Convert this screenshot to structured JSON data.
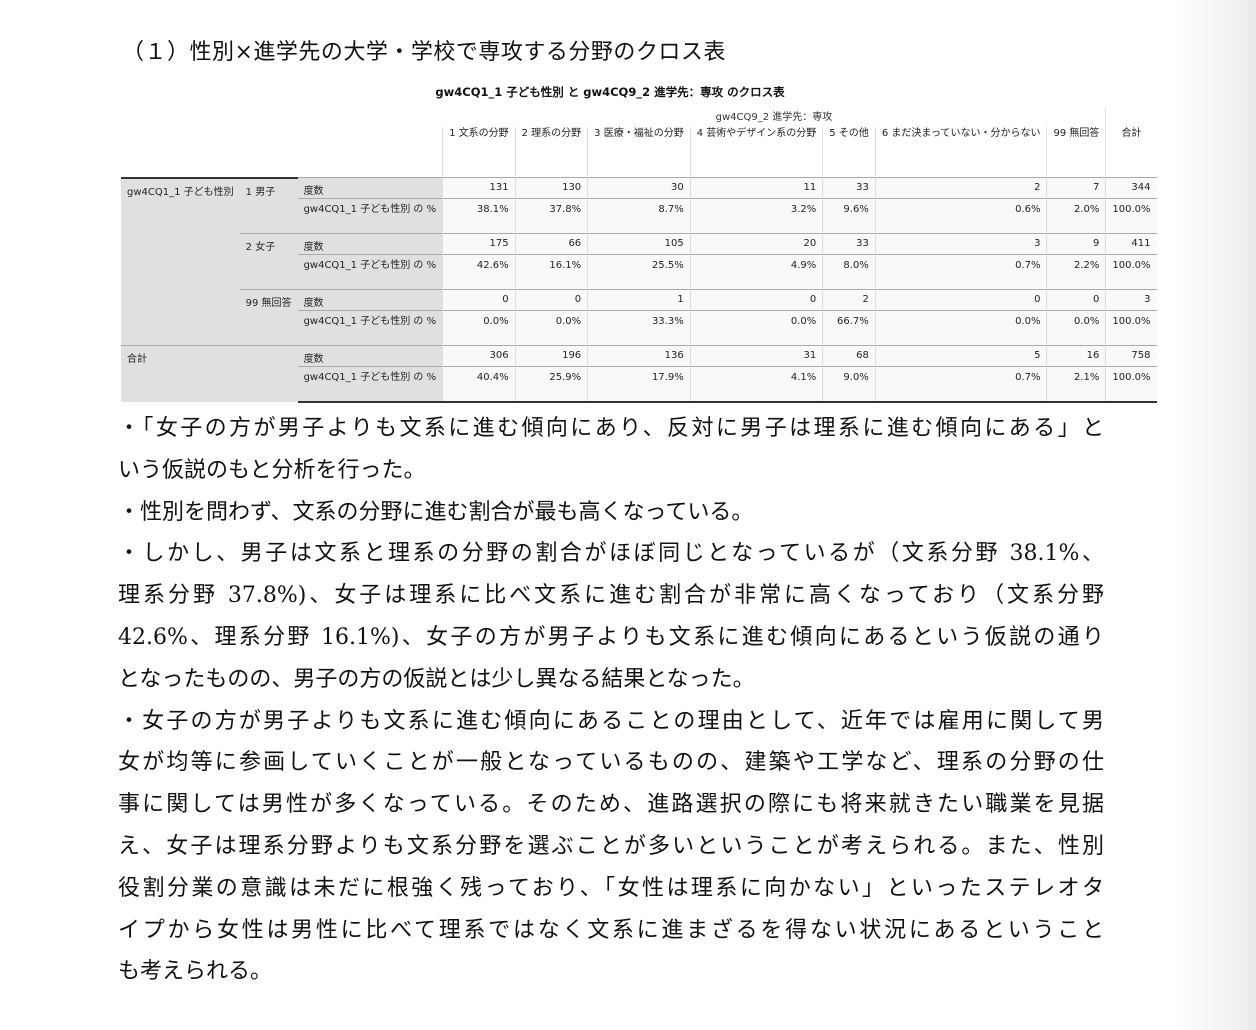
{
  "title": "（１）性別×進学先の大学・学校で専攻する分野のクロス表",
  "table": {
    "caption": "gw4CQ1_1 子ども性別 と gw4CQ9_2 進学先：専攻 のクロス表",
    "column_variable": "gw4CQ9_2 進学先：専攻",
    "columns": [
      "1 文系の分野",
      "2 理系の分野",
      "3 医療・福祉の分野",
      "4 芸術やデザイン系の分野",
      "5 その他",
      "6 まだ決まっていない・分からない",
      "99 無回答",
      "合計"
    ],
    "row_variable": "gw4CQ1_1 子ども性別",
    "count_label": "度数",
    "pct_label": "gw4CQ1_1 子ども性別 の %",
    "groups": [
      {
        "label": "1 男子",
        "counts": [
          "131",
          "130",
          "30",
          "11",
          "33",
          "2",
          "7",
          "344"
        ],
        "pcts": [
          "38.1%",
          "37.8%",
          "8.7%",
          "3.2%",
          "9.6%",
          "0.6%",
          "2.0%",
          "100.0%"
        ]
      },
      {
        "label": "2 女子",
        "counts": [
          "175",
          "66",
          "105",
          "20",
          "33",
          "3",
          "9",
          "411"
        ],
        "pcts": [
          "42.6%",
          "16.1%",
          "25.5%",
          "4.9%",
          "8.0%",
          "0.7%",
          "2.2%",
          "100.0%"
        ]
      },
      {
        "label": "99 無回答",
        "counts": [
          "0",
          "0",
          "1",
          "0",
          "2",
          "0",
          "0",
          "3"
        ],
        "pcts": [
          "0.0%",
          "0.0%",
          "33.3%",
          "0.0%",
          "66.7%",
          "0.0%",
          "0.0%",
          "100.0%"
        ]
      }
    ],
    "total": {
      "label": "合計",
      "counts": [
        "306",
        "196",
        "136",
        "31",
        "68",
        "5",
        "16",
        "758"
      ],
      "pcts": [
        "40.4%",
        "25.9%",
        "17.9%",
        "4.1%",
        "9.0%",
        "0.7%",
        "2.1%",
        "100.0%"
      ]
    }
  },
  "paragraphs": [
    [
      "・「女子の方が男子よりも文系に進む傾向にあり、反対に男子は理系に進む傾向にある」と",
      "いう仮説のもと分析を行った。"
    ],
    [
      "・性別を問わず、文系の分野に進む割合が最も高くなっている。"
    ],
    [
      "・しかし、男子は文系と理系の分野の割合がほぼ同じとなっているが（文系分野 38.1%、",
      "理系分野 37.8%)、女子は理系に比べ文系に進む割合が非常に高くなっており（文系分野",
      "42.6%、理系分野 16.1%)、女子の方が男子よりも文系に進む傾向にあるという仮説の通り",
      "となったものの、男子の方の仮説とは少し異なる結果となった。"
    ],
    [
      "・女子の方が男子よりも文系に進む傾向にあることの理由として、近年では雇用に関して男",
      "女が均等に参画していくことが一般となっているものの、建築や工学など、理系の分野の仕",
      "事に関しては男性が多くなっている。そのため、進路選択の際にも将来就きたい職業を見据",
      "え、女子は理系分野よりも文系分野を選ぶことが多いということが考えられる。また、性別",
      "役割分業の意識は未だに根強く残っており、「女性は理系に向かない」といったステレオタ",
      "イプから女性は男性に比べて理系ではなく文系に進まざるを得ない状況にあるということ",
      "も考えられる。"
    ]
  ]
}
